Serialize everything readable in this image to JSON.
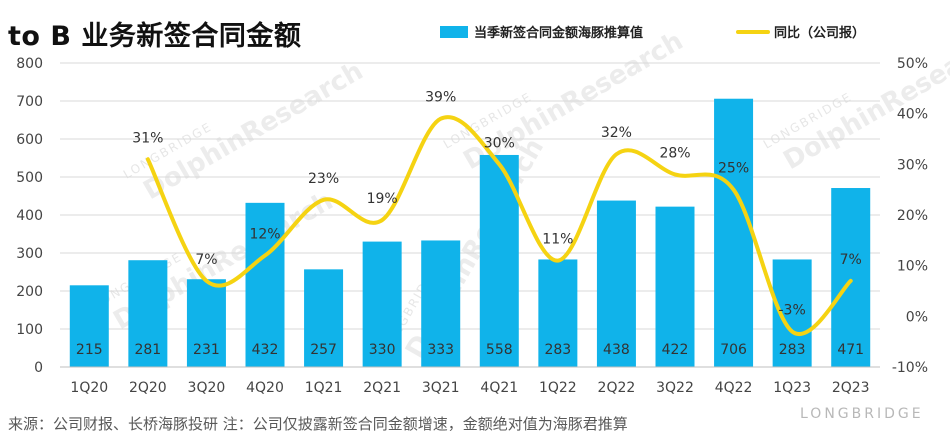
{
  "title": "to B 业务新签合同金额",
  "footer": "来源：公司财报、长桥海豚投研   注：公司仅披露新签合同金额增速，金额绝对值为海豚君推算",
  "watermark": {
    "main": "DolphinResearch",
    "small": "LONGBRIDGE",
    "brand": "LONGBRIDGE"
  },
  "colors": {
    "bar": "#10b3ea",
    "line": "#f5d312",
    "grid": "#d9d9d9"
  },
  "chart_data": {
    "type": "bar",
    "categories": [
      "1Q20",
      "2Q20",
      "3Q20",
      "4Q20",
      "1Q21",
      "2Q21",
      "3Q21",
      "4Q21",
      "1Q22",
      "2Q22",
      "3Q22",
      "4Q22",
      "1Q23",
      "2Q23"
    ],
    "series": [
      {
        "name": "当季新签合同金额海豚推算值",
        "type": "bar",
        "axis": "left",
        "values": [
          215,
          281,
          231,
          432,
          257,
          330,
          333,
          558,
          283,
          438,
          422,
          706,
          283,
          471
        ],
        "labels": [
          "215",
          "281",
          "231",
          "432",
          "257",
          "330",
          "333",
          "558",
          "283",
          "438",
          "422",
          "706",
          "283",
          "471"
        ]
      },
      {
        "name": "同比（公司报）",
        "type": "line",
        "axis": "right",
        "values": [
          null,
          31,
          7,
          12,
          23,
          19,
          39,
          30,
          11,
          32,
          28,
          25,
          -3,
          7
        ],
        "labels": [
          "",
          "31%",
          "7%",
          "12%",
          "23%",
          "19%",
          "39%",
          "30%",
          "11%",
          "32%",
          "28%",
          "25%",
          "-3%",
          "7%"
        ]
      }
    ],
    "ylim_left": [
      0,
      800
    ],
    "yticks_left": [
      "0",
      "100",
      "200",
      "300",
      "400",
      "500",
      "600",
      "700",
      "800"
    ],
    "ylim_right": [
      -10,
      50
    ],
    "yticks_right": [
      "-10%",
      "0%",
      "10%",
      "20%",
      "30%",
      "40%",
      "50%"
    ],
    "legend_position": "top-right",
    "grid": true
  }
}
